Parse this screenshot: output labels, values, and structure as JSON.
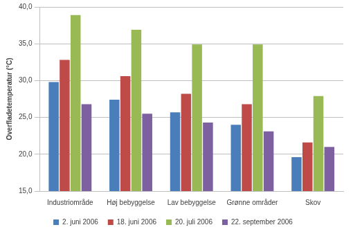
{
  "chart_data": {
    "type": "bar",
    "y_label": "Overfladetemperatur (°C)",
    "categories": [
      "Industriområde",
      "Høj bebyggelse",
      "Lav bebyggelse",
      "Grønne områder",
      "Skov"
    ],
    "series": [
      {
        "name": "2. juni 2006",
        "color": "#4a7ebb",
        "values": [
          29.8,
          27.4,
          25.7,
          24.0,
          19.6
        ]
      },
      {
        "name": "18. juni 2006",
        "color": "#be4b48",
        "values": [
          32.8,
          30.6,
          28.2,
          26.8,
          21.6
        ]
      },
      {
        "name": "20. juli 2006",
        "color": "#98b954",
        "values": [
          38.9,
          36.9,
          34.9,
          34.9,
          27.9
        ]
      },
      {
        "name": "22. september 2006",
        "color": "#7d60a0",
        "values": [
          26.8,
          25.5,
          24.3,
          23.1,
          21.0
        ]
      }
    ],
    "ylim": [
      15,
      40
    ],
    "yticks": [
      {
        "value": 15,
        "label": "15,0"
      },
      {
        "value": 20,
        "label": "20,0"
      },
      {
        "value": 25,
        "label": "25,0"
      },
      {
        "value": 30,
        "label": "30,0"
      },
      {
        "value": 35,
        "label": "35,0"
      },
      {
        "value": 40,
        "label": "40,0"
      }
    ],
    "grid": true,
    "legend": "bottom"
  }
}
